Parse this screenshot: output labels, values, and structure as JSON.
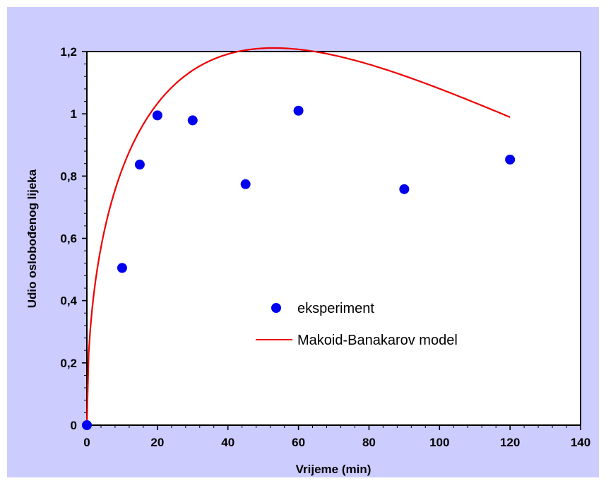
{
  "colors": {
    "chart_area_background": "#ccccff",
    "plot_background": "#ffffff",
    "point_color": "#0000ee",
    "model_line_color": "#ee0000"
  },
  "chart_data": {
    "type": "scatter",
    "title": "",
    "xlabel": "Vrijeme (min)",
    "ylabel": "Udio oslobođenog lijeka",
    "xlim": [
      0,
      140
    ],
    "ylim": [
      0,
      1.2
    ],
    "x_ticks": [
      "0",
      "20",
      "40",
      "60",
      "80",
      "100",
      "120",
      "140"
    ],
    "y_ticks": [
      "0",
      "0,2",
      "0,4",
      "0,6",
      "0,8",
      "1",
      "1,2"
    ],
    "grid": false,
    "legend_position": "center-right",
    "series": [
      {
        "name": "eksperiment",
        "kind": "points",
        "color": "#0000ee",
        "x": [
          0,
          10,
          15,
          20,
          30,
          45,
          60,
          90,
          120
        ],
        "y": [
          0,
          0.505,
          0.837,
          0.995,
          0.979,
          0.774,
          1.01,
          0.758,
          0.853
        ]
      },
      {
        "name": "Makoid-Banakarov model",
        "kind": "line",
        "color": "#ee0000",
        "model": "k * t^n * exp(-c * t)",
        "params": {
          "k": 0.3155,
          "n": 0.453,
          "c": 0.00855
        },
        "t_range": [
          0,
          120
        ]
      }
    ]
  }
}
